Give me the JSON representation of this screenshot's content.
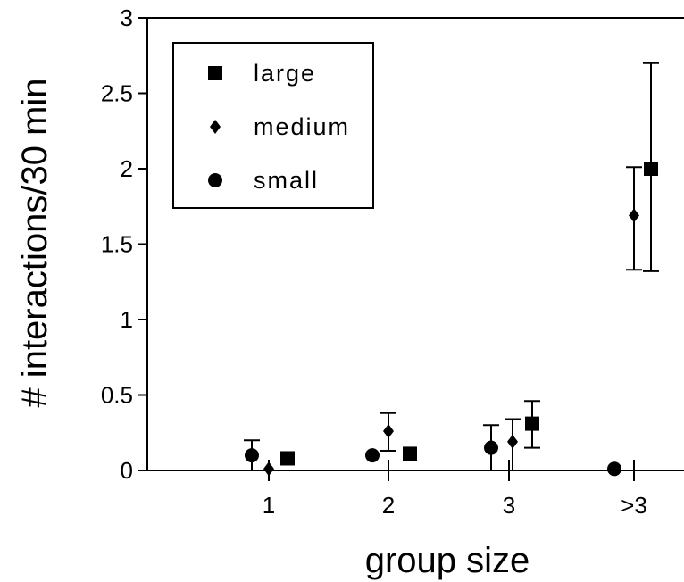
{
  "chart_data": {
    "type": "scatter",
    "title": "",
    "xlabel": "group size",
    "ylabel": "# interactions/30 min",
    "categories": [
      "1",
      "2",
      "3",
      ">3"
    ],
    "ylim": [
      0,
      3
    ],
    "yticks": [
      "0",
      "0.5",
      "1",
      "1.5",
      "2",
      "2.5",
      "3"
    ],
    "grid": false,
    "legend_position": "top-left",
    "series": [
      {
        "name": "small",
        "marker": "circle",
        "values": [
          0.1,
          0.1,
          0.15,
          0.01
        ],
        "error_low": [
          0.0,
          0.1,
          0.0,
          0.01
        ],
        "error_high": [
          0.2,
          0.1,
          0.3,
          0.01
        ]
      },
      {
        "name": "medium",
        "marker": "diamond",
        "values": [
          0.01,
          0.26,
          0.19,
          1.69
        ],
        "error_low": [
          0.01,
          0.13,
          0.0,
          1.33
        ],
        "error_high": [
          0.01,
          0.38,
          0.34,
          2.01
        ]
      },
      {
        "name": "large",
        "marker": "square",
        "values": [
          0.08,
          0.11,
          0.31,
          2.0
        ],
        "error_low": [
          0.08,
          0.11,
          0.15,
          1.32
        ],
        "error_high": [
          0.08,
          0.11,
          0.46,
          2.7
        ]
      }
    ],
    "legend_order": [
      "large",
      "medium",
      "small"
    ]
  }
}
